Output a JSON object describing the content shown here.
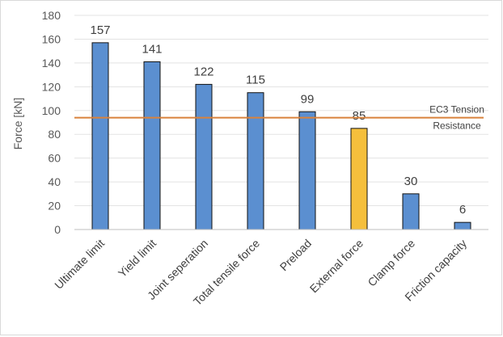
{
  "chart_data": {
    "type": "bar",
    "title": "",
    "xlabel": "",
    "ylabel": "Force [kN]",
    "ylim": [
      0,
      180
    ],
    "ytick_step": 20,
    "grid": true,
    "legend": "none",
    "categories": [
      "Ultimate limit",
      "Yield limit",
      "Joint seperation",
      "Total tensile force",
      "Preload",
      "External force",
      "Clamp force",
      "Friction capacity"
    ],
    "values": [
      157,
      141,
      122,
      115,
      99,
      85,
      30,
      6
    ],
    "bar_colors": [
      "#5b8fd0",
      "#5b8fd0",
      "#5b8fd0",
      "#5b8fd0",
      "#5b8fd0",
      "#f5bf3c",
      "#5b8fd0",
      "#5b8fd0"
    ],
    "reference_line": {
      "value": 94,
      "color": "#d9823b",
      "label_lines": [
        "EC3 Tension",
        "Resistance"
      ]
    }
  }
}
